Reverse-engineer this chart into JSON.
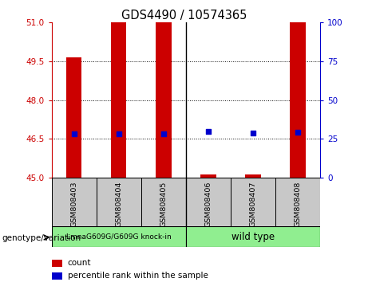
{
  "title": "GDS4490 / 10574365",
  "samples": [
    "GSM808403",
    "GSM808404",
    "GSM808405",
    "GSM808406",
    "GSM808407",
    "GSM808408"
  ],
  "group1_name": "LmnaG609G/G609G knock-in",
  "group2_name": "wild type",
  "group_color": "#90ee90",
  "ylim_left": [
    45,
    51
  ],
  "ylim_right": [
    0,
    100
  ],
  "yticks_left": [
    45,
    46.5,
    48,
    49.5,
    51
  ],
  "yticks_right": [
    0,
    25,
    50,
    75,
    100
  ],
  "bar_values": [
    49.65,
    51,
    51,
    45.12,
    45.12,
    51
  ],
  "bar_base": 45,
  "percentile_values": [
    46.7,
    46.7,
    46.7,
    46.8,
    46.72,
    46.75
  ],
  "bar_color": "#cc0000",
  "dot_color": "#0000cc",
  "background_color": "#ffffff",
  "plot_bg": "#ffffff",
  "tick_color_left": "#cc0000",
  "tick_color_right": "#0000cc",
  "sample_bg": "#c8c8c8",
  "bar_width": 0.35,
  "dot_size": 25,
  "hlines": [
    46.5,
    48,
    49.5
  ],
  "divider_col": 2.5,
  "n_group1": 3,
  "n_group2": 3
}
